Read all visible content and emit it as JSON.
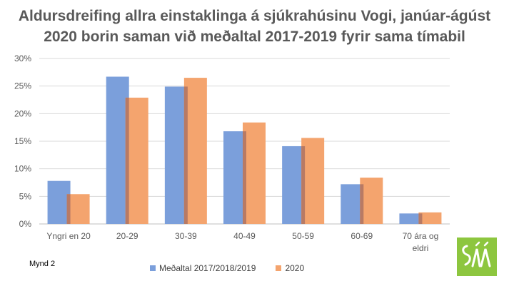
{
  "chart_data": {
    "type": "bar",
    "title_lines": [
      "Aldursdreifing allra einstaklinga á sjúkrahúsinu Vogi, janúar-ágúst",
      "2020 borin saman við meðaltal 2017-2019 fyrir sama tímabil"
    ],
    "categories": [
      "Yngri en 20",
      "20-29",
      "30-39",
      "40-49",
      "50-59",
      "60-69",
      "70 ára og eldri"
    ],
    "category_label_lines": [
      [
        "Yngri en 20"
      ],
      [
        "20-29"
      ],
      [
        "30-39"
      ],
      [
        "40-49"
      ],
      [
        "50-59"
      ],
      [
        "60-69"
      ],
      [
        "70 ára og",
        "eldri"
      ]
    ],
    "series": [
      {
        "name": "Meðaltal 2017/2018/2019",
        "color": "#7b9fdb",
        "values": [
          7.8,
          26.7,
          24.9,
          16.8,
          14.1,
          7.2,
          1.9
        ]
      },
      {
        "name": "2020",
        "color": "#f4a46e",
        "values": [
          5.4,
          22.9,
          26.5,
          18.4,
          15.6,
          8.4,
          2.1
        ]
      }
    ],
    "overlap_color": "#b87a64",
    "yticks": [
      "0%",
      "5%",
      "10%",
      "15%",
      "20%",
      "25%",
      "30%"
    ],
    "ylim": [
      0,
      30
    ],
    "grid": true,
    "legend_position": "bottom"
  },
  "figure_label": "Mynd 2",
  "logo_text": "SÁÁ"
}
